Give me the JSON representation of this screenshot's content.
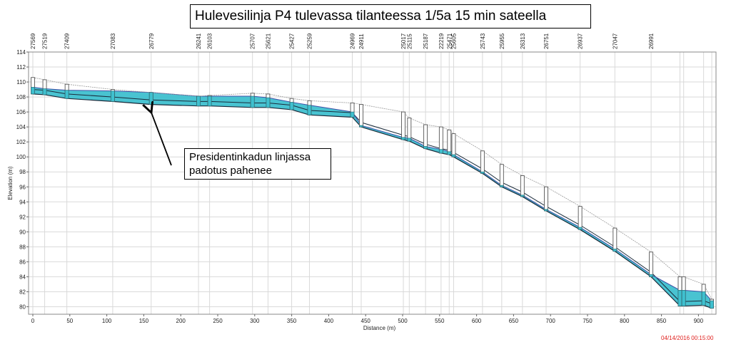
{
  "chart_data": {
    "type": "line",
    "title": "Hulevesilinja P4 tulevassa tilanteessa 1/5a 15 min sateella",
    "xlabel": "Distance (m)",
    "ylabel": "Elevation (m)",
    "xlim": [
      0,
      920
    ],
    "ylim": [
      79,
      114
    ],
    "x_ticks": [
      0,
      50,
      100,
      150,
      200,
      250,
      300,
      350,
      400,
      450,
      500,
      550,
      600,
      650,
      700,
      750,
      800,
      850,
      900
    ],
    "y_ticks": [
      80,
      82,
      84,
      86,
      88,
      90,
      92,
      94,
      96,
      98,
      100,
      102,
      104,
      106,
      108,
      110,
      112,
      114
    ],
    "nodes": [
      {
        "id": "27569",
        "x": 0,
        "ground": 110.6,
        "invert": 108.4,
        "water": 109.3
      },
      {
        "id": "27519",
        "x": 16,
        "ground": 110.3,
        "invert": 108.3,
        "water": 109.1
      },
      {
        "id": "27409",
        "x": 46,
        "ground": 109.7,
        "invert": 107.8,
        "water": 108.9
      },
      {
        "id": "27083",
        "x": 108,
        "ground": 109.0,
        "invert": 107.4,
        "water": 108.8
      },
      {
        "id": "26779",
        "x": 160,
        "ground": 108.6,
        "invert": 107.0,
        "water": 108.6
      },
      {
        "id": "26241",
        "x": 224,
        "ground": 108.1,
        "invert": 106.8,
        "water": 108.1
      },
      {
        "id": "26103",
        "x": 239,
        "ground": 108.2,
        "invert": 106.8,
        "water": 108.1
      },
      {
        "id": "25707",
        "x": 297,
        "ground": 108.5,
        "invert": 106.6,
        "water": 108.1
      },
      {
        "id": "25621",
        "x": 318,
        "ground": 108.4,
        "invert": 106.6,
        "water": 107.9
      },
      {
        "id": "25427",
        "x": 350,
        "ground": 107.8,
        "invert": 106.3,
        "water": 107.3
      },
      {
        "id": "25259",
        "x": 374,
        "ground": 107.5,
        "invert": 105.6,
        "water": 106.9
      },
      {
        "id": "24969",
        "x": 432,
        "ground": 107.2,
        "invert": 105.3,
        "water": 106.0
      },
      {
        "id": "24911",
        "x": 444,
        "ground": 107.0,
        "invert": 104.0,
        "water": 104.2
      },
      {
        "id": "25017",
        "x": 501,
        "ground": 106.0,
        "invert": 102.3,
        "water": 102.6
      },
      {
        "id": "25115",
        "x": 509,
        "ground": 105.2,
        "invert": 102.1,
        "water": 102.5
      },
      {
        "id": "25187",
        "x": 531,
        "ground": 104.3,
        "invert": 101.1,
        "water": 101.4
      },
      {
        "id": "22219",
        "x": 552,
        "ground": 104.0,
        "invert": 100.5,
        "water": 101.0
      },
      {
        "id": "25471",
        "x": 563,
        "ground": 103.6,
        "invert": 100.3,
        "water": 100.7
      },
      {
        "id": "25605",
        "x": 569,
        "ground": 103.1,
        "invert": 100.0,
        "water": 100.3
      },
      {
        "id": "25743",
        "x": 608,
        "ground": 100.8,
        "invert": 97.8,
        "water": 98.0
      },
      {
        "id": "25955",
        "x": 634,
        "ground": 99.0,
        "invert": 96.0,
        "water": 96.2
      },
      {
        "id": "26313",
        "x": 662,
        "ground": 97.5,
        "invert": 94.7,
        "water": 94.9
      },
      {
        "id": "26751",
        "x": 694,
        "ground": 96.0,
        "invert": 92.8,
        "water": 93.0
      },
      {
        "id": "26937",
        "x": 740,
        "ground": 93.4,
        "invert": 90.3,
        "water": 90.6
      },
      {
        "id": "27047",
        "x": 787,
        "ground": 90.5,
        "invert": 87.4,
        "water": 87.7
      },
      {
        "id": "26991",
        "x": 836,
        "ground": 87.3,
        "invert": 84.0,
        "water": 84.3
      },
      {
        "id": "",
        "x": 875,
        "ground": 84.0,
        "invert": 80.1,
        "water": 82.2
      },
      {
        "id": "",
        "x": 880,
        "ground": 84.0,
        "invert": 80.1,
        "water": 82.2
      },
      {
        "id": "",
        "x": 907,
        "ground": 83.0,
        "invert": 80.2,
        "water": 82.0
      },
      {
        "id": "",
        "x": 918,
        "ground": 81.0,
        "invert": 79.8,
        "water": 80.8
      }
    ],
    "colors": {
      "water_fill": "#3fc0cf",
      "water_line": "#4050a8",
      "invert_line": "#1a2a3a",
      "ground_line": "#9a9a9a",
      "grid": "#d9d9d9",
      "manhole": "#555555"
    },
    "annotation": "Presidentinkadun linjassa\npadotus pahenee",
    "timestamp": "04/14/2016 00:15:00",
    "grid": true
  },
  "title_text": "Hulevesilinja P4 tulevassa tilanteessa 1/5a 15 min sateella",
  "annotation_line1": "Presidentinkadun linjassa",
  "annotation_line2": "padotus pahenee",
  "timestamp_text": "04/14/2016 00:15:00"
}
